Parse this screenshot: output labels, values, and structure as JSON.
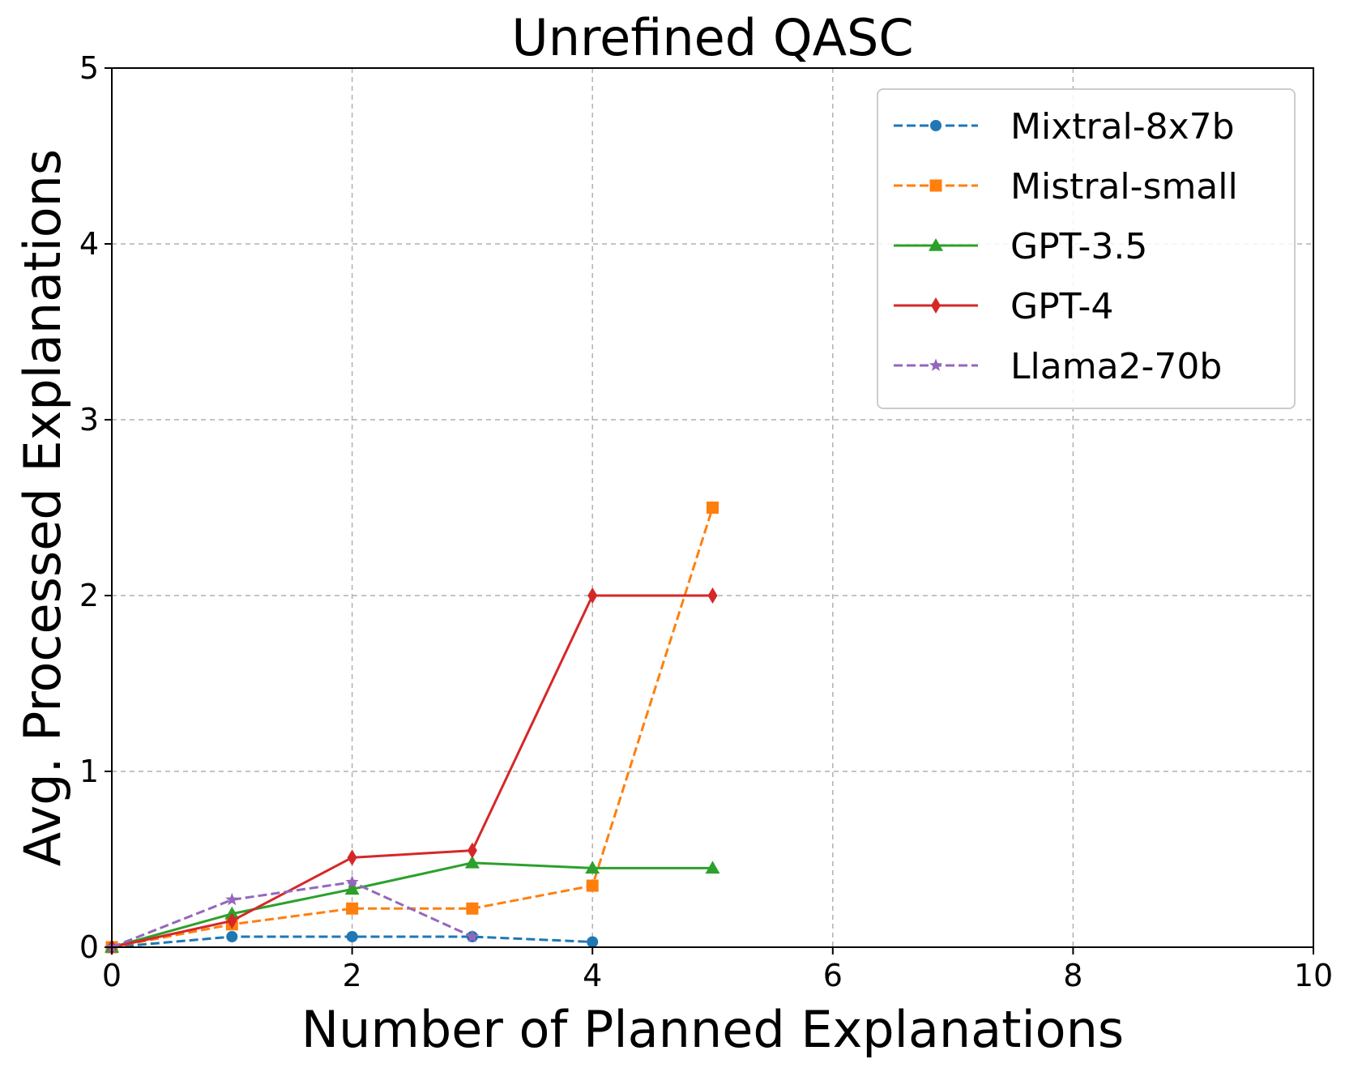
{
  "chart_data": {
    "type": "line",
    "title": "Unrefined QASC",
    "xlabel": "Number of Planned Explanations",
    "ylabel": "Avg. Processed Explanations",
    "xlim": [
      0,
      10
    ],
    "ylim": [
      0,
      5
    ],
    "x_ticks": [
      0,
      2,
      4,
      6,
      8,
      10
    ],
    "y_ticks": [
      0,
      1,
      2,
      3,
      4,
      5
    ],
    "x_tick_labels": [
      "0",
      "2",
      "4",
      "6",
      "8",
      "10"
    ],
    "y_tick_labels": [
      "0",
      "1",
      "2",
      "3",
      "4",
      "5"
    ],
    "grid": true,
    "legend_position": "top-right",
    "series": [
      {
        "name": "Mixtral-8x7b",
        "color": "#1f77b4",
        "line_style": "dashed",
        "marker": "circle",
        "x": [
          0,
          1,
          2,
          3,
          4
        ],
        "y": [
          0,
          0.06,
          0.06,
          0.06,
          0.03
        ]
      },
      {
        "name": "Mistral-small",
        "color": "#ff7f0e",
        "line_style": "dashed",
        "marker": "square",
        "x": [
          0,
          1,
          2,
          3,
          4,
          5
        ],
        "y": [
          0,
          0.13,
          0.22,
          0.22,
          0.35,
          2.5
        ]
      },
      {
        "name": "GPT-3.5",
        "color": "#2ca02c",
        "line_style": "solid",
        "marker": "triangle",
        "x": [
          0,
          1,
          2,
          3,
          4,
          5
        ],
        "y": [
          0,
          0.19,
          0.33,
          0.48,
          0.45,
          0.45
        ]
      },
      {
        "name": "GPT-4",
        "color": "#d62728",
        "line_style": "solid",
        "marker": "diamond",
        "x": [
          0,
          1,
          2,
          3,
          4,
          5
        ],
        "y": [
          0,
          0.15,
          0.51,
          0.55,
          2.0,
          2.0
        ]
      },
      {
        "name": "Llama2-70b",
        "color": "#9467bd",
        "line_style": "dashed",
        "marker": "star",
        "x": [
          0,
          1,
          2,
          3
        ],
        "y": [
          0,
          0.27,
          0.37,
          0.06
        ]
      }
    ]
  }
}
